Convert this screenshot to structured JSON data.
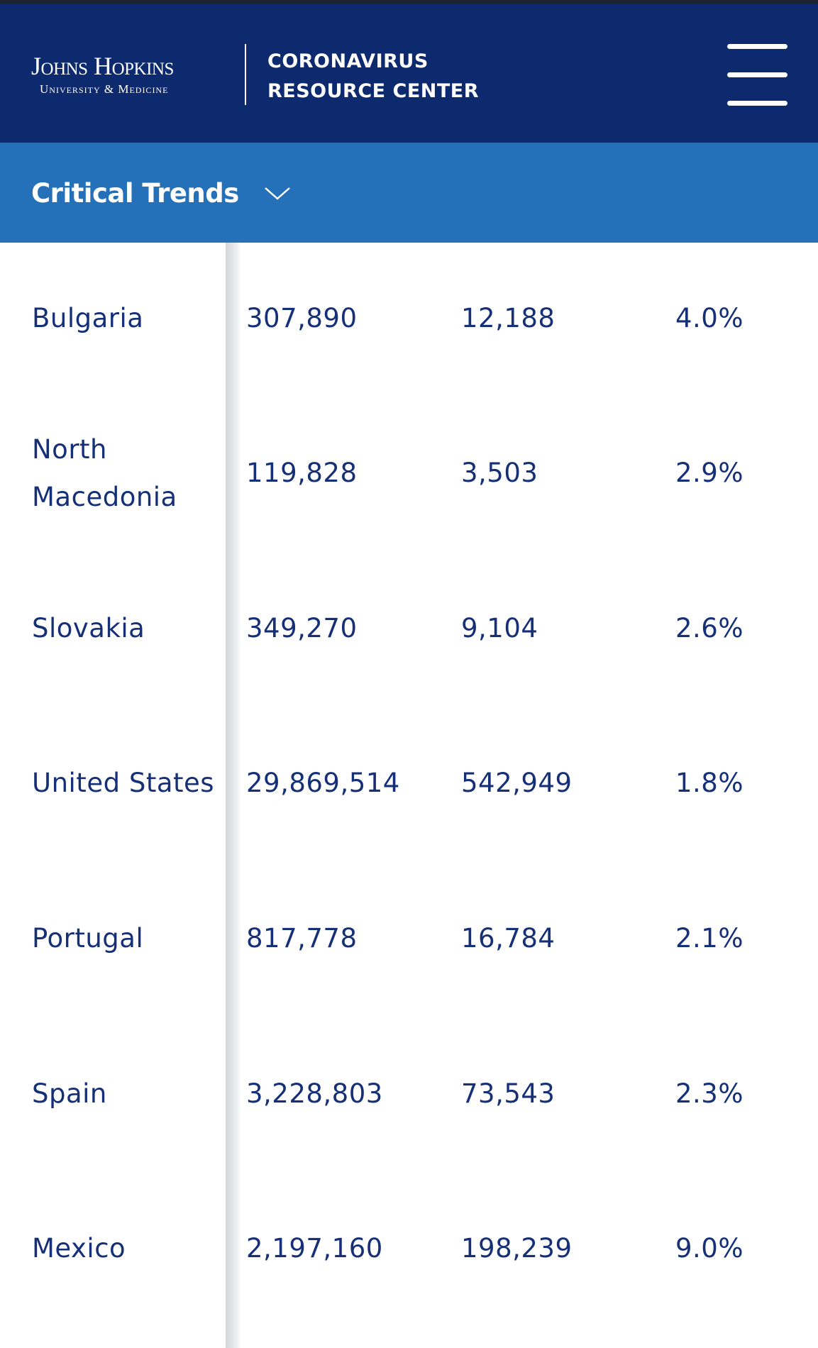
{
  "header": {
    "logo_main": "Johns Hopkins",
    "logo_sub": "University & Medicine",
    "title_line1": "CORONAVIRUS",
    "title_line2": "RESOURCE CENTER"
  },
  "nav": {
    "label": "Critical Trends"
  },
  "table": {
    "rows": [
      [
        "Bulgaria",
        "307,890",
        "12,188",
        "4.0%"
      ],
      [
        "North Macedonia",
        "119,828",
        "3,503",
        "2.9%"
      ],
      [
        "Slovakia",
        "349,270",
        "9,104",
        "2.6%"
      ],
      [
        "United States",
        "29,869,514",
        "542,949",
        "1.8%"
      ],
      [
        "Portugal",
        "817,778",
        "16,784",
        "2.1%"
      ],
      [
        "Spain",
        "3,228,803",
        "73,543",
        "2.3%"
      ],
      [
        "Mexico",
        "2,197,160",
        "198,239",
        "9.0%"
      ]
    ]
  }
}
